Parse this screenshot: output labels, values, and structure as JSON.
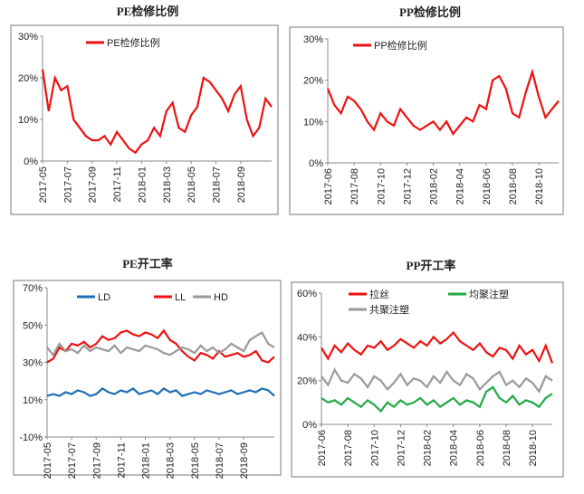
{
  "chart_data": [
    {
      "type": "line",
      "title": "PE检修比例",
      "categories": [
        "2017-05",
        null,
        null,
        null,
        "2017-07",
        null,
        null,
        null,
        "2017-09",
        null,
        null,
        null,
        "2017-11",
        null,
        null,
        null,
        "2018-01",
        null,
        null,
        null,
        "2018-03",
        null,
        null,
        null,
        "2018-05",
        null,
        null,
        null,
        "2018-07",
        null,
        null,
        null,
        "2018-09",
        null,
        null,
        null,
        null,
        null
      ],
      "series": [
        {
          "name": "PE检修比例",
          "color": "#ee1111",
          "values": [
            22,
            12,
            20,
            17,
            18,
            10,
            8,
            6,
            5,
            5,
            6,
            4,
            7,
            5,
            3,
            2,
            4,
            5,
            8,
            6,
            12,
            14,
            8,
            7,
            11,
            13,
            20,
            19,
            17,
            15,
            12,
            16,
            18,
            10,
            6,
            8,
            15,
            13
          ]
        }
      ],
      "ylim": [
        0,
        30
      ],
      "yticks": [
        {
          "value": 0,
          "label": "0%"
        },
        {
          "value": 10,
          "label": "10%"
        },
        {
          "value": 20,
          "label": "20%"
        },
        {
          "value": 30,
          "label": "30%"
        }
      ]
    },
    {
      "type": "line",
      "title": "PP检修比例",
      "categories": [
        "2017-06",
        null,
        null,
        null,
        "2017-08",
        null,
        null,
        null,
        "2017-10",
        null,
        null,
        null,
        "2017-12",
        null,
        null,
        null,
        "2018-02",
        null,
        null,
        null,
        "2018-04",
        null,
        null,
        null,
        "2018-06",
        null,
        null,
        null,
        "2018-08",
        null,
        null,
        null,
        "2018-10",
        null,
        null,
        null
      ],
      "series": [
        {
          "name": "PP检修比例",
          "color": "#ee1111",
          "values": [
            18,
            14,
            12,
            16,
            15,
            13,
            10,
            8,
            12,
            10,
            9,
            13,
            11,
            9,
            8,
            9,
            10,
            8,
            10,
            7,
            9,
            11,
            10,
            14,
            13,
            20,
            21,
            18,
            12,
            11,
            17,
            22,
            16,
            11,
            13,
            15
          ]
        }
      ],
      "ylim": [
        0,
        30
      ],
      "yticks": [
        {
          "value": 0,
          "label": "0%"
        },
        {
          "value": 10,
          "label": "10%"
        },
        {
          "value": 20,
          "label": "20%"
        },
        {
          "value": 30,
          "label": "30%"
        }
      ]
    },
    {
      "type": "line",
      "title": "PE开工率",
      "categories": [
        "2017-05",
        null,
        null,
        null,
        "2017-07",
        null,
        null,
        null,
        "2017-09",
        null,
        null,
        null,
        "2017-11",
        null,
        null,
        null,
        "2018-01",
        null,
        null,
        null,
        "2018-03",
        null,
        null,
        null,
        "2018-05",
        null,
        null,
        null,
        "2018-07",
        null,
        null,
        null,
        "2018-09",
        null,
        null,
        null,
        null,
        null
      ],
      "series": [
        {
          "name": "LD",
          "color": "#1f6fb8",
          "values": [
            12,
            13,
            12,
            14,
            13,
            15,
            14,
            12,
            13,
            16,
            14,
            13,
            15,
            14,
            16,
            13,
            14,
            15,
            13,
            16,
            14,
            15,
            12,
            13,
            14,
            13,
            15,
            14,
            13,
            14,
            15,
            13,
            14,
            15,
            14,
            16,
            15,
            12
          ]
        },
        {
          "name": "LL",
          "color": "#ee1111",
          "values": [
            30,
            32,
            38,
            36,
            40,
            39,
            41,
            38,
            40,
            44,
            42,
            43,
            46,
            47,
            45,
            44,
            46,
            45,
            43,
            47,
            42,
            40,
            36,
            33,
            31,
            35,
            34,
            32,
            36,
            33,
            34,
            35,
            33,
            34,
            36,
            31,
            30,
            33
          ]
        },
        {
          "name": "HD",
          "color": "#999999",
          "values": [
            38,
            34,
            40,
            36,
            37,
            35,
            39,
            36,
            38,
            37,
            36,
            39,
            35,
            38,
            37,
            36,
            39,
            38,
            37,
            35,
            34,
            36,
            38,
            37,
            35,
            39,
            36,
            38,
            35,
            37,
            40,
            38,
            36,
            42,
            44,
            46,
            40,
            38
          ]
        }
      ],
      "ylim": [
        -10,
        70
      ],
      "yticks": [
        {
          "value": -10,
          "label": "-10%"
        },
        {
          "value": 10,
          "label": "10%"
        },
        {
          "value": 30,
          "label": "30%"
        },
        {
          "value": 50,
          "label": "50%"
        },
        {
          "value": 70,
          "label": "70%"
        }
      ]
    },
    {
      "type": "line",
      "title": "PP开工率",
      "categories": [
        "2017-06",
        null,
        null,
        null,
        "2017-08",
        null,
        null,
        null,
        "2017-10",
        null,
        null,
        null,
        "2017-12",
        null,
        null,
        null,
        "2018-02",
        null,
        null,
        null,
        "2018-04",
        null,
        null,
        null,
        "2018-06",
        null,
        null,
        null,
        "2018-08",
        null,
        null,
        null,
        "2018-10",
        null,
        null,
        null
      ],
      "series": [
        {
          "name": "拉丝",
          "color": "#ee1111",
          "values": [
            35,
            30,
            36,
            33,
            37,
            34,
            32,
            36,
            35,
            38,
            34,
            36,
            39,
            37,
            35,
            38,
            36,
            40,
            37,
            39,
            42,
            38,
            36,
            34,
            37,
            33,
            31,
            35,
            34,
            30,
            36,
            32,
            34,
            29,
            36,
            28
          ]
        },
        {
          "name": "均聚注塑",
          "color": "#22aa44",
          "values": [
            12,
            10,
            11,
            9,
            12,
            10,
            8,
            11,
            9,
            6,
            10,
            8,
            11,
            9,
            10,
            12,
            9,
            11,
            8,
            10,
            12,
            9,
            11,
            10,
            8,
            15,
            17,
            12,
            10,
            13,
            9,
            11,
            10,
            8,
            12,
            14
          ]
        },
        {
          "name": "共聚注塑",
          "color": "#999999",
          "values": [
            22,
            18,
            25,
            20,
            19,
            23,
            21,
            17,
            22,
            20,
            16,
            19,
            23,
            18,
            21,
            20,
            17,
            22,
            19,
            24,
            20,
            18,
            23,
            21,
            16,
            19,
            22,
            24,
            18,
            20,
            17,
            21,
            19,
            15,
            22,
            20
          ]
        }
      ],
      "ylim": [
        0,
        60
      ],
      "yticks": [
        {
          "value": 0,
          "label": "0%"
        },
        {
          "value": 20,
          "label": "20%"
        },
        {
          "value": 40,
          "label": "40%"
        },
        {
          "value": 60,
          "label": "60%"
        }
      ]
    }
  ]
}
